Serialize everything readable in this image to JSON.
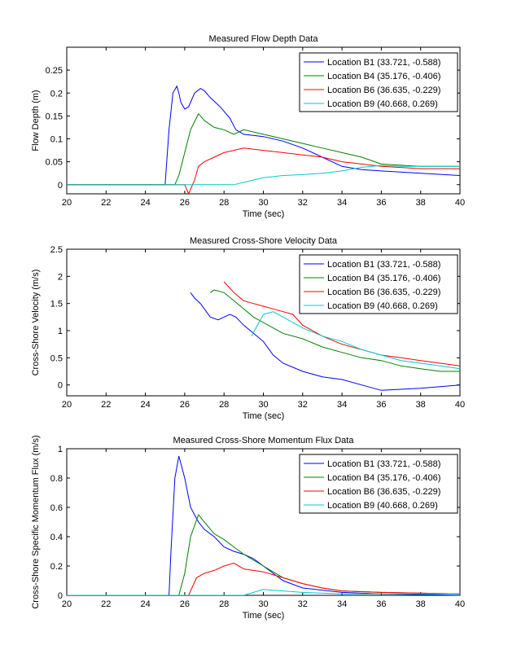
{
  "chart_data": [
    {
      "type": "line",
      "title": "Measured Flow Depth Data",
      "xlabel": "Time (sec)",
      "ylabel": "Flow Depth (m)",
      "xlim": [
        20,
        40
      ],
      "ylim": [
        -0.02,
        0.3
      ],
      "xticks": [
        20,
        22,
        24,
        26,
        28,
        30,
        32,
        34,
        36,
        38,
        40
      ],
      "xtick_labels": [
        "20",
        "22",
        "24",
        "26",
        "28",
        "30",
        "32",
        "34",
        "36",
        "38",
        "40"
      ],
      "yticks": [
        0,
        0.05,
        0.1,
        0.15,
        0.2,
        0.25
      ],
      "ytick_labels": [
        "0",
        "0.05",
        "0.1",
        "0.15",
        "0.2",
        "0.25"
      ],
      "legend_position": "top-right",
      "series": [
        {
          "name": "Location B1 (33.721, -0.588)",
          "color": "#0000ff",
          "x": [
            20,
            25.0,
            25.2,
            25.4,
            25.6,
            25.7,
            25.8,
            26.0,
            26.2,
            26.5,
            26.8,
            27.0,
            27.3,
            27.8,
            28.3,
            28.6,
            29.0,
            30.0,
            31.0,
            32.0,
            33.0,
            34.0,
            35.0,
            36.0,
            38.0,
            40.0
          ],
          "y": [
            0,
            0,
            0.12,
            0.2,
            0.215,
            0.2,
            0.18,
            0.165,
            0.17,
            0.2,
            0.21,
            0.205,
            0.19,
            0.17,
            0.145,
            0.12,
            0.11,
            0.105,
            0.095,
            0.08,
            0.06,
            0.04,
            0.033,
            0.03,
            0.025,
            0.02
          ]
        },
        {
          "name": "Location B4 (35.176, -0.406)",
          "color": "#008000",
          "x": [
            20,
            25.5,
            25.7,
            26.0,
            26.3,
            26.7,
            27.0,
            27.5,
            28.0,
            28.5,
            29.0,
            30.0,
            31.0,
            32.0,
            33.0,
            34.0,
            35.0,
            36.0,
            38.0,
            40.0
          ],
          "y": [
            0,
            0,
            0.02,
            0.07,
            0.12,
            0.155,
            0.14,
            0.125,
            0.12,
            0.11,
            0.12,
            0.11,
            0.1,
            0.09,
            0.08,
            0.07,
            0.06,
            0.045,
            0.04,
            0.04
          ]
        },
        {
          "name": "Location B6 (36.635, -0.229)",
          "color": "#ff0000",
          "x": [
            20,
            26.0,
            26.2,
            26.5,
            26.7,
            27.0,
            27.5,
            28.0,
            28.5,
            29.0,
            30.0,
            31.0,
            32.0,
            33.0,
            34.0,
            35.0,
            36.0,
            38.0,
            40.0
          ],
          "y": [
            0,
            0,
            -0.02,
            0.01,
            0.04,
            0.05,
            0.06,
            0.07,
            0.075,
            0.08,
            0.075,
            0.07,
            0.065,
            0.06,
            0.05,
            0.045,
            0.04,
            0.035,
            0.035
          ]
        },
        {
          "name": "Location B9 (40.668, 0.269)",
          "color": "#00cccc",
          "x": [
            20,
            28.5,
            29.0,
            30.0,
            31.0,
            32.0,
            33.0,
            34.0,
            35.0,
            36.0,
            37.0,
            38.0,
            40.0
          ],
          "y": [
            0,
            0,
            0.005,
            0.015,
            0.02,
            0.022,
            0.025,
            0.03,
            0.038,
            0.042,
            0.04,
            0.04,
            0.04
          ]
        }
      ]
    },
    {
      "type": "line",
      "title": "Measured Cross-Shore Velocity Data",
      "xlabel": "Time (sec)",
      "ylabel": "Cross-Shore Velocity (m/s)",
      "xlim": [
        20,
        40
      ],
      "ylim": [
        -0.2,
        2.5
      ],
      "xticks": [
        20,
        22,
        24,
        26,
        28,
        30,
        32,
        34,
        36,
        38,
        40
      ],
      "xtick_labels": [
        "20",
        "22",
        "24",
        "26",
        "28",
        "30",
        "32",
        "34",
        "36",
        "38",
        "40"
      ],
      "yticks": [
        0,
        0.5,
        1,
        1.5,
        2,
        2.5
      ],
      "ytick_labels": [
        "0",
        "0.5",
        "1",
        "1.5",
        "2",
        "2.5"
      ],
      "legend_position": "top-right",
      "series": [
        {
          "name": "Location B1 (33.721, -0.588)",
          "color": "#0000ff",
          "x": [
            26.3,
            26.5,
            26.8,
            27.0,
            27.3,
            27.7,
            28.0,
            28.3,
            28.6,
            29.0,
            29.5,
            30.0,
            30.5,
            31.0,
            32.0,
            33.0,
            34.0,
            35.0,
            36.0,
            37.0,
            38.0,
            39.0,
            40.0
          ],
          "y": [
            1.7,
            1.6,
            1.5,
            1.4,
            1.25,
            1.2,
            1.25,
            1.3,
            1.25,
            1.1,
            0.95,
            0.8,
            0.55,
            0.4,
            0.25,
            0.15,
            0.1,
            0.0,
            -0.1,
            -0.08,
            -0.06,
            -0.03,
            0.0
          ]
        },
        {
          "name": "Location B4 (35.176, -0.406)",
          "color": "#008000",
          "x": [
            27.3,
            27.5,
            28.0,
            28.5,
            29.0,
            29.5,
            30.0,
            30.5,
            31.0,
            32.0,
            33.0,
            34.0,
            35.0,
            36.0,
            37.0,
            38.0,
            39.0,
            40.0
          ],
          "y": [
            1.7,
            1.75,
            1.7,
            1.55,
            1.4,
            1.25,
            1.15,
            1.05,
            0.95,
            0.85,
            0.7,
            0.6,
            0.5,
            0.45,
            0.35,
            0.3,
            0.25,
            0.25
          ]
        },
        {
          "name": "Location B6 (36.635, -0.229)",
          "color": "#ff0000",
          "x": [
            28.0,
            28.5,
            29.0,
            29.5,
            30.0,
            30.5,
            31.0,
            31.5,
            32.0,
            33.0,
            34.0,
            35.0,
            36.0,
            37.0,
            38.0,
            39.0,
            40.0
          ],
          "y": [
            1.9,
            1.7,
            1.55,
            1.5,
            1.45,
            1.4,
            1.35,
            1.3,
            1.1,
            0.9,
            0.75,
            0.65,
            0.55,
            0.5,
            0.45,
            0.4,
            0.35
          ]
        },
        {
          "name": "Location B9 (40.668, 0.269)",
          "color": "#00cccc",
          "x": [
            29.4,
            29.7,
            30.0,
            30.5,
            31.0,
            32.0,
            33.0,
            34.0,
            35.0,
            36.0,
            37.0,
            38.0,
            39.0,
            40.0
          ],
          "y": [
            0.9,
            1.1,
            1.3,
            1.35,
            1.25,
            1.05,
            0.9,
            0.8,
            0.65,
            0.55,
            0.45,
            0.4,
            0.35,
            0.3
          ]
        }
      ]
    },
    {
      "type": "line",
      "title": "Measured Cross-Shore Momentum Flux Data",
      "xlabel": "Time (sec)",
      "ylabel": "Cross-Shore Specific Momentum Flux (m/s)",
      "xlim": [
        20,
        40
      ],
      "ylim": [
        0,
        1
      ],
      "xticks": [
        20,
        22,
        24,
        26,
        28,
        30,
        32,
        34,
        36,
        38,
        40
      ],
      "xtick_labels": [
        "20",
        "22",
        "24",
        "26",
        "28",
        "30",
        "32",
        "34",
        "36",
        "38",
        "40"
      ],
      "yticks": [
        0,
        0.2,
        0.4,
        0.6,
        0.8,
        1
      ],
      "ytick_labels": [
        "0",
        "0.2",
        "0.4",
        "0.6",
        "0.8",
        "1"
      ],
      "legend_position": "top-right",
      "series": [
        {
          "name": "Location B1 (33.721, -0.588)",
          "color": "#0000ff",
          "x": [
            20,
            25.2,
            25.3,
            25.5,
            25.7,
            26.0,
            26.3,
            26.7,
            27.0,
            27.5,
            28.0,
            28.5,
            29.0,
            29.5,
            30.0,
            31.0,
            32.0,
            34.0,
            36.0,
            40.0
          ],
          "y": [
            0,
            0,
            0.3,
            0.8,
            0.95,
            0.8,
            0.6,
            0.5,
            0.45,
            0.4,
            0.33,
            0.3,
            0.28,
            0.25,
            0.2,
            0.1,
            0.05,
            0.02,
            0.01,
            0.0
          ]
        },
        {
          "name": "Location B4 (35.176, -0.406)",
          "color": "#008000",
          "x": [
            20,
            25.7,
            26.0,
            26.3,
            26.7,
            27.0,
            27.5,
            28.0,
            28.5,
            29.0,
            30.0,
            31.0,
            32.0,
            33.0,
            34.0,
            36.0,
            40.0
          ],
          "y": [
            0,
            0,
            0.15,
            0.4,
            0.55,
            0.5,
            0.42,
            0.38,
            0.33,
            0.28,
            0.2,
            0.12,
            0.08,
            0.05,
            0.03,
            0.02,
            0.01
          ]
        },
        {
          "name": "Location B6 (36.635, -0.229)",
          "color": "#ff0000",
          "x": [
            20,
            26.2,
            26.6,
            27.0,
            27.5,
            28.0,
            28.5,
            29.0,
            30.0,
            31.0,
            32.0,
            33.0,
            34.0,
            36.0,
            40.0
          ],
          "y": [
            0,
            0,
            0.12,
            0.15,
            0.17,
            0.2,
            0.22,
            0.18,
            0.16,
            0.12,
            0.08,
            0.05,
            0.03,
            0.02,
            0.01
          ]
        },
        {
          "name": "Location B9 (40.668, 0.269)",
          "color": "#00cccc",
          "x": [
            20,
            29.0,
            29.5,
            30.0,
            30.5,
            31.0,
            32.0,
            34.0,
            36.0,
            40.0
          ],
          "y": [
            0,
            0,
            0.02,
            0.04,
            0.035,
            0.03,
            0.02,
            0.01,
            0.01,
            0.01
          ]
        }
      ]
    }
  ]
}
